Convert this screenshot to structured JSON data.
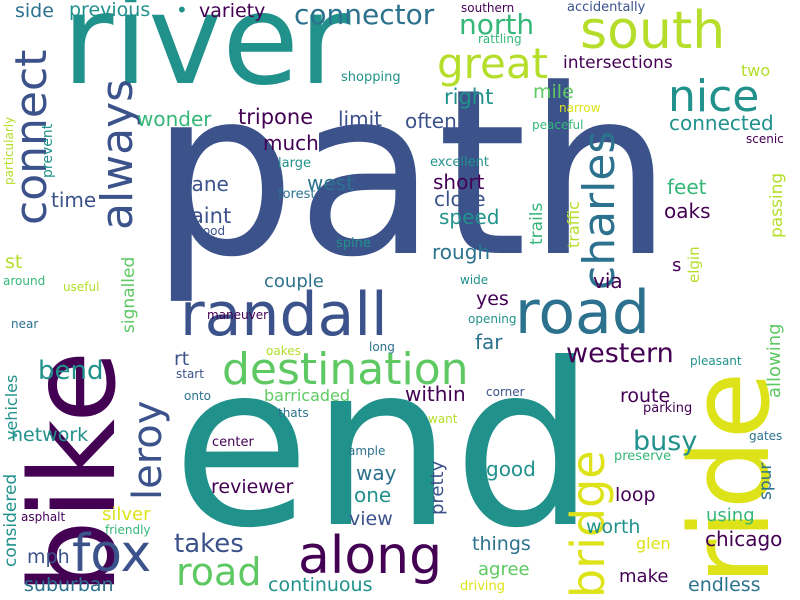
{
  "colors": {
    "background": "#ffffff",
    "dark_purple": "#440154",
    "indigo": "#3b528b",
    "teal": "#21918c",
    "green": "#5ec962",
    "lime": "#b5de2b",
    "yellow": "#dde318",
    "blue_teal": "#2c728e",
    "sea_green": "#35b779"
  },
  "words": {
    "path": "path",
    "end": "end",
    "river": "river",
    "bike": "bike",
    "ride": "ride",
    "randall": "randall",
    "road1": "road",
    "south": "south",
    "fox": "fox",
    "along": "along",
    "destination": "destination",
    "connect": "connect",
    "always": "always",
    "charles": "charles",
    "bridge": "bridge",
    "nice": "nice",
    "great": "great",
    "leroy": "leroy",
    "road2": "road",
    "connector": "connector",
    "north": "north",
    "western": "western",
    "busy": "busy",
    "bend": "bend",
    "takes": "takes",
    "previous": "previous",
    "variety": "variety",
    "side": "side",
    "right": "right",
    "mile": "mile",
    "two": "two",
    "intersections": "intersections",
    "wonder": "wonder",
    "tripone": "tripone",
    "limit": "limit",
    "often": "often",
    "connected": "connected",
    "much": "much",
    "time": "time",
    "lane": "lane",
    "west": "west",
    "short": "short",
    "close": "close",
    "feet": "feet",
    "oaks": "oaks",
    "saint": "saint",
    "speed": "speed",
    "rough": "rough",
    "st": "st",
    "couple": "couple",
    "via": "via",
    "s": "s",
    "yes": "yes",
    "far": "far",
    "rt": "rt",
    "within": "within",
    "route": "route",
    "barricaded": "barricaded",
    "network": "network",
    "way": "way",
    "one": "one",
    "reviewer": "reviewer",
    "good": "good",
    "loop": "loop",
    "view": "view",
    "silver": "silver",
    "worth": "worth",
    "using": "using",
    "chicago": "chicago",
    "things": "things",
    "mph": "mph",
    "agree": "agree",
    "make": "make",
    "suburban": "suburban",
    "continuous": "continuous",
    "endless": "endless",
    "glen": "glen",
    "driving": "driving",
    "southern": "southern",
    "accidentally": "accidentally",
    "rattling": "rattling",
    "shopping": "shopping",
    "narrow": "narrow",
    "peaceful": "peaceful",
    "scenic": "scenic",
    "excellent": "excellent",
    "large": "large",
    "forest": "forest",
    "wood": "wood",
    "spine": "spine",
    "around": "around",
    "wide": "wide",
    "useful": "useful",
    "maneuver": "maneuver",
    "opening": "opening",
    "near": "near",
    "long": "long",
    "oakes": "oakes",
    "pleasant": "pleasant",
    "start": "start",
    "onto": "onto",
    "corner": "corner",
    "thats": "thats",
    "parking": "parking",
    "want": "want",
    "gates": "gates",
    "center": "center",
    "ample": "ample",
    "preserve": "preserve",
    "asphalt": "asphalt",
    "friendly": "friendly",
    "particularly": "particularly",
    "prevent": "prevent",
    "trails": "trails",
    "traffic": "traffic",
    "passing": "passing",
    "signalled": "signalled",
    "elgin": "elgin",
    "allowing": "allowing",
    "vehicles": "vehicles",
    "considered": "considered",
    "pretty": "pretty",
    "spur": "spur",
    "dot": "•"
  }
}
